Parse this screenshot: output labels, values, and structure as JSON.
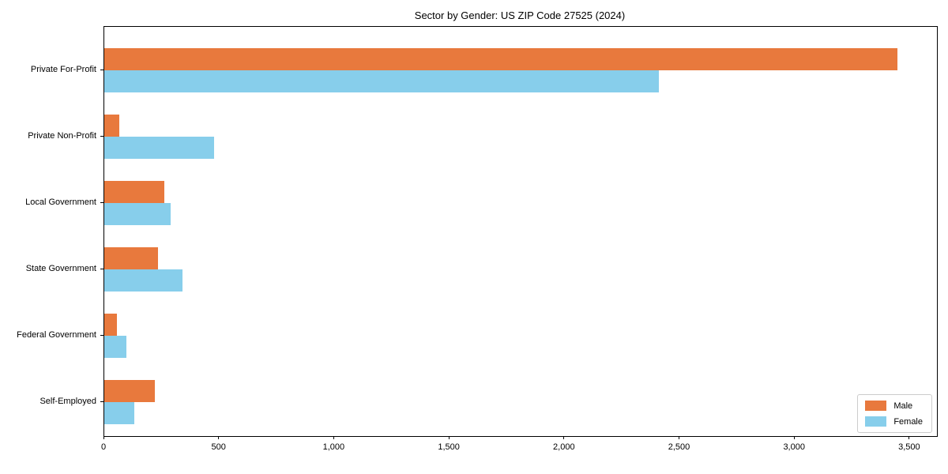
{
  "title": "Sector by Gender: US ZIP Code 27525 (2024)",
  "colors": {
    "male": "#e8793d",
    "female": "#87ceeb",
    "spine": "#000000",
    "legend_border": "#cccccc",
    "text": "#000000",
    "background": "#ffffff"
  },
  "chart_data": {
    "type": "bar",
    "orientation": "horizontal",
    "title": "Sector by Gender: US ZIP Code 27525 (2024)",
    "categories": [
      "Private For-Profit",
      "Private Non-Profit",
      "Local Government",
      "State Government",
      "Federal Government",
      "Self-Employed"
    ],
    "series": [
      {
        "name": "Male",
        "color": "#e8793d",
        "values": [
          3445,
          65,
          260,
          232,
          54,
          220
        ]
      },
      {
        "name": "Female",
        "color": "#87ceeb",
        "values": [
          2410,
          476,
          288,
          340,
          97,
          131
        ]
      }
    ],
    "xlabel": "",
    "ylabel": "",
    "xlim": [
      0,
      3617
    ],
    "x_ticks": [
      0,
      500,
      1000,
      1500,
      2000,
      2500,
      3000,
      3500
    ],
    "x_tick_labels": [
      "0",
      "500",
      "1,000",
      "1,500",
      "2,000",
      "2,500",
      "3,000",
      "3,500"
    ],
    "grid": false,
    "legend": {
      "position": "lower right",
      "entries": [
        {
          "label": "Male",
          "color": "#e8793d"
        },
        {
          "label": "Female",
          "color": "#87ceeb"
        }
      ]
    }
  }
}
